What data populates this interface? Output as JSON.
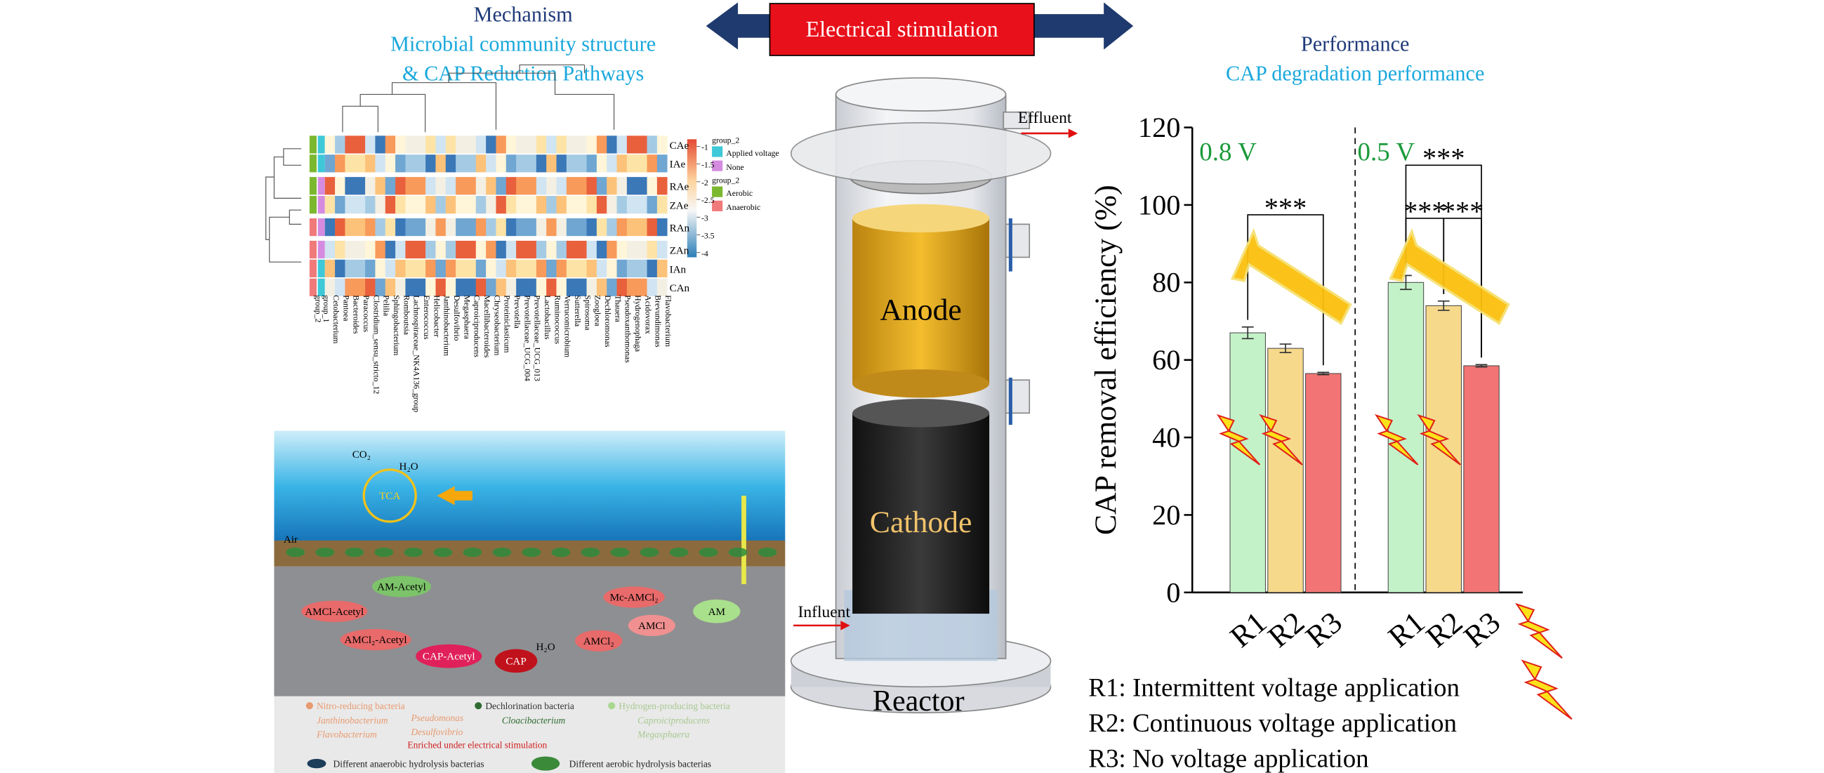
{
  "banner": "Electrical stimulation",
  "left_header": {
    "title": "Mechanism",
    "subtitle_lines": [
      "Microbial community structure",
      "& CAP Reduction Pathways"
    ]
  },
  "right_header": {
    "title": "Performance",
    "subtitle": "CAP degradation performance"
  },
  "heatmap": {
    "rows": [
      "CAe",
      "IAe",
      "RAe",
      "ZAe",
      "RAn",
      "ZAn",
      "IAn",
      "CAn"
    ],
    "group_labels": [
      "group_2",
      "group_1"
    ],
    "columns": [
      "Cetobacterium",
      "Pantoea",
      "Bacteroides",
      "Paracoccus",
      "Clostridium_sensu_stricto_12",
      "Pelilia",
      "Sphingobacterium",
      "Romboutsia",
      "Lachnospiraceae_NK4A136_group",
      "Enterococcus",
      "Helicobacter",
      "Janthinobacterium",
      "Desulfovibrio",
      "Megasphaera",
      "Caproiciproducens",
      "Macellibacteroides",
      "Chryseobacterium",
      "Proteiniclasticum",
      "Prevotella",
      "Prevotellaceae_UCG_004",
      "Prevotellaceae_UCG_013",
      "Lactobacillus",
      "Ruminococcus",
      "Verrucomicrobium",
      "Sutterella",
      "Spirosoma",
      "Zoogloea",
      "Dechloromonas",
      "Thauera",
      "Pseudoxanthomonas",
      "Hydrogenophaga",
      "Acidovorax",
      "Brevundimonas",
      "Flavobacterium"
    ],
    "legend": [
      {
        "title": "group_2",
        "items": [
          {
            "label": "Applied voltage",
            "color": "#3ec8d8"
          },
          {
            "label": "None",
            "color": "#d58be0"
          }
        ]
      },
      {
        "title": "group_2",
        "items": [
          {
            "label": "Aerobic",
            "color": "#7cb82f"
          },
          {
            "label": "Anaerobic",
            "color": "#f07a7a"
          }
        ]
      }
    ],
    "scale_ticks": [
      -1,
      -1.5,
      -2,
      -2.5,
      -3,
      -3.5,
      -4
    ]
  },
  "reactor": {
    "effluent": "Effluent",
    "anode": "Anode",
    "cathode": "Cathode",
    "influent": "Influent",
    "reactor": "Reactor"
  },
  "pathway": {
    "co2": "CO₂",
    "h2o_top": "H₂O",
    "tca": "TCA",
    "air": "Air",
    "am_acetyl": "AM-Acetyl",
    "amcl_acetyl": "AMCl-Acetyl",
    "amcl2_acetyl": "AMCl₂-Acetyl",
    "cap_acetyl": "CAP-Acetyl",
    "cap": "CAP",
    "h2o": "H₂O",
    "amcl2": "AMCl₂",
    "amcl": "AMCl",
    "mc_amcl2": "Mc-AMCl₂",
    "am": "AM",
    "nitro": "Nitro-reducing bacteria",
    "janthino": "Janthinobacterium",
    "pseudo": "Pseudomonas",
    "flavo": "Flavobacterium",
    "desulfo": "Desulfovibrio",
    "dechlor": "Dechlorination bacteria",
    "cloaci": "Cloacibacterium",
    "hydrogen": "Hydrogen-producing bacteria",
    "caproici": "Caproiciproducens",
    "megas": "Megasphaera",
    "enriched": "Enriched under electrical stimulation",
    "anaerobic": "Different anaerobic hydrolysis bacterias",
    "aerobic": "Different aerobic hydrolysis bacterias"
  },
  "chart_data": {
    "type": "bar",
    "ylabel": "CAP removal efficiency (%)",
    "ylim": [
      0,
      120
    ],
    "yticks": [
      0,
      20,
      40,
      60,
      80,
      100,
      120
    ],
    "colors": [
      "#c4f2c8",
      "#f7d98c",
      "#f27474"
    ],
    "groups": [
      {
        "name": "0.8 V",
        "categories": [
          "R1",
          "R2",
          "R3"
        ],
        "values": [
          67,
          63,
          56.5
        ],
        "errors": [
          1.5,
          1.1,
          0.3
        ],
        "significance": [
          "***"
        ]
      },
      {
        "name": "0.5 V",
        "categories": [
          "R1",
          "R2",
          "R3"
        ],
        "values": [
          80,
          74,
          58.5
        ],
        "errors": [
          1.8,
          1.2,
          0.3
        ],
        "significance": [
          "***",
          "***",
          "***"
        ]
      }
    ]
  },
  "legend": [
    "R1: Intermittent voltage application",
    "R2: Continuous voltage application",
    "R3: No voltage application"
  ]
}
